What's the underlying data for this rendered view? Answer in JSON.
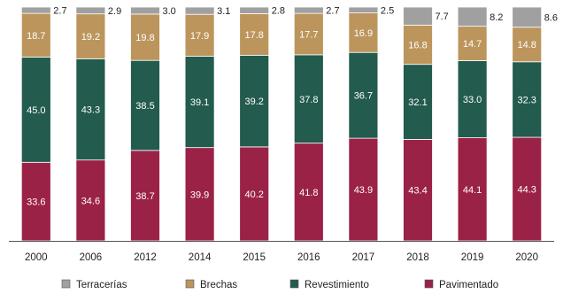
{
  "chart_data": {
    "type": "bar",
    "stacked": true,
    "categories": [
      "2000",
      "2006",
      "2012",
      "2014",
      "2015",
      "2016",
      "2017",
      "2018",
      "2019",
      "2020"
    ],
    "series": [
      {
        "name": "Pavimentado",
        "color": "#9b2247",
        "values": [
          33.6,
          34.6,
          38.7,
          39.9,
          40.2,
          41.8,
          43.9,
          43.4,
          44.1,
          44.3
        ],
        "labels": [
          "33.6",
          "34.6",
          "38.7",
          "39.9",
          "40.2",
          "41.8",
          "43.9",
          "43.4",
          "44.1",
          "44.3"
        ]
      },
      {
        "name": "Revestimiento",
        "color": "#235b4e",
        "values": [
          45.0,
          43.3,
          38.5,
          39.1,
          39.2,
          37.8,
          36.7,
          32.1,
          33.0,
          32.3
        ],
        "labels": [
          "45.0",
          "43.3",
          "38.5",
          "39.1",
          "39.2",
          "37.8",
          "36.7",
          "32.1",
          "33.0",
          "32.3"
        ]
      },
      {
        "name": "Brechas",
        "color": "#bc955c",
        "values": [
          18.7,
          19.2,
          19.8,
          17.9,
          17.8,
          17.7,
          16.9,
          16.8,
          14.7,
          14.8
        ],
        "labels": [
          "18.7",
          "19.2",
          "19.8",
          "17.9",
          "17.8",
          "17.7",
          "16.9",
          "16.8",
          "14.7",
          "14.8"
        ]
      },
      {
        "name": "Terracerías",
        "color": "#a0a0a0",
        "values": [
          2.7,
          2.9,
          3.0,
          3.1,
          2.8,
          2.7,
          2.5,
          7.7,
          8.2,
          8.6
        ],
        "labels": [
          "2.7",
          "2.9",
          "3.0",
          "3.1",
          "2.8",
          "2.7",
          "2.5",
          "7.7",
          "8.2",
          "8.6"
        ]
      }
    ],
    "ylim": [
      0,
      100
    ],
    "legend_order": [
      "Terracerías",
      "Brechas",
      "Revestimiento",
      "Pavimentado"
    ],
    "legend": "bottom",
    "grid": false
  }
}
